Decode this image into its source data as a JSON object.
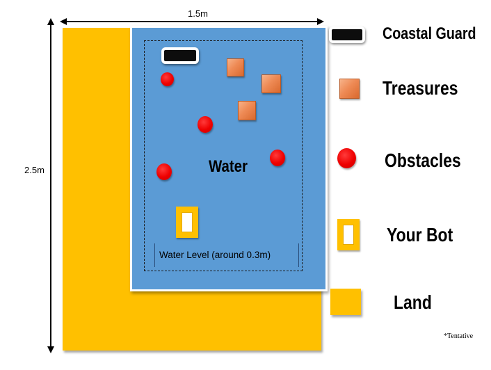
{
  "dimensions": {
    "width_label": "1.5m",
    "height_label": "2.5m"
  },
  "arena": {
    "water_label": "Water",
    "water_level_label": "Water Level (around 0.3m)"
  },
  "legend": {
    "items": [
      {
        "label": "Coastal Guard",
        "icon": "coastal-guard-icon"
      },
      {
        "label": "Treasures",
        "icon": "treasure-icon"
      },
      {
        "label": "Obstacles",
        "icon": "obstacle-icon"
      },
      {
        "label": "Your Bot",
        "icon": "bot-icon"
      },
      {
        "label": "Land",
        "icon": "land-icon"
      }
    ]
  },
  "note": "*Tentative",
  "colors": {
    "land": "#FFC000",
    "water": "#5B9BD5",
    "treasure": "#EE8A55",
    "obstacle": "#EE0000",
    "coastal_guard": "#0D0D0D"
  }
}
